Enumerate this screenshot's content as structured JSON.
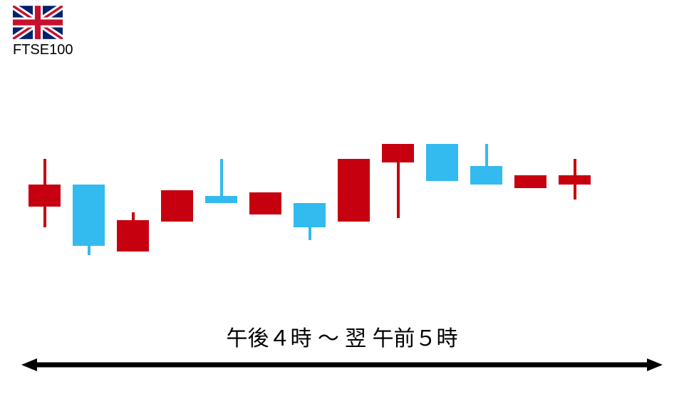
{
  "header": {
    "flag": "uk",
    "label": "FTSE100"
  },
  "chart": {
    "type": "candlestick",
    "colors": {
      "up": "#33baef",
      "down": "#c6000f",
      "background": "#ffffff"
    },
    "y_range": [
      0,
      100
    ],
    "candle_width": 45,
    "wick_width": 4,
    "spacing": 62,
    "candles": [
      {
        "x": 0,
        "open": 58,
        "close": 46,
        "high": 72,
        "low": 35,
        "color": "down"
      },
      {
        "x": 1,
        "open": 58,
        "close": 25,
        "high": 58,
        "low": 20,
        "color": "up"
      },
      {
        "x": 2,
        "open": 39,
        "close": 22,
        "high": 43,
        "low": 22,
        "color": "down"
      },
      {
        "x": 3,
        "open": 55,
        "close": 38,
        "high": 55,
        "low": 38,
        "color": "down"
      },
      {
        "x": 4,
        "open": 52,
        "close": 48,
        "high": 72,
        "low": 48,
        "color": "up"
      },
      {
        "x": 5,
        "open": 54,
        "close": 42,
        "high": 54,
        "low": 42,
        "color": "down"
      },
      {
        "x": 6,
        "open": 48,
        "close": 35,
        "high": 48,
        "low": 28,
        "color": "up"
      },
      {
        "x": 7,
        "open": 72,
        "close": 38,
        "high": 72,
        "low": 38,
        "color": "down"
      },
      {
        "x": 8,
        "open": 80,
        "close": 70,
        "high": 80,
        "low": 40,
        "color": "down"
      },
      {
        "x": 9,
        "open": 80,
        "close": 60,
        "high": 80,
        "low": 60,
        "color": "up"
      },
      {
        "x": 10,
        "open": 68,
        "close": 58,
        "high": 80,
        "low": 58,
        "color": "up"
      },
      {
        "x": 11,
        "open": 63,
        "close": 56,
        "high": 63,
        "low": 56,
        "color": "down"
      },
      {
        "x": 12,
        "open": 63,
        "close": 58,
        "high": 72,
        "low": 50,
        "color": "down"
      }
    ]
  },
  "footer": {
    "time_label": "午後４時 ～ 翌 午前５時",
    "arrow_color": "#000000",
    "label_fontsize": 30
  }
}
